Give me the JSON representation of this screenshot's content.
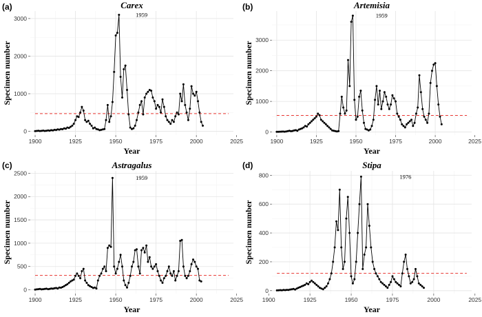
{
  "chart_data": [
    {
      "type": "line",
      "label": "(a)",
      "title": "Carex",
      "xlabel": "Year",
      "ylabel": "Specimen number",
      "xlim": [
        1897,
        2023
      ],
      "ylim": [
        -100,
        3200
      ],
      "xticks": [
        1900,
        1925,
        1950,
        1975,
        2000,
        2025
      ],
      "yticks": [
        0,
        1000,
        2000,
        3000
      ],
      "mean": 470,
      "annotation": {
        "text": "1959",
        "x": 1959,
        "y": 3100
      },
      "x_start": 1900,
      "values": [
        5,
        10,
        15,
        8,
        12,
        20,
        10,
        15,
        25,
        18,
        30,
        22,
        40,
        35,
        50,
        45,
        60,
        55,
        80,
        70,
        100,
        90,
        120,
        150,
        200,
        300,
        400,
        380,
        500,
        650,
        550,
        300,
        250,
        280,
        200,
        150,
        80,
        100,
        60,
        50,
        30,
        40,
        50,
        60,
        300,
        700,
        250,
        400,
        780,
        1580,
        2550,
        2620,
        3100,
        1450,
        900,
        1650,
        1750,
        1100,
        450,
        100,
        60,
        80,
        150,
        300,
        500,
        700,
        800,
        450,
        900,
        1000,
        1050,
        1100,
        1080,
        900,
        800,
        600,
        700,
        650,
        500,
        850,
        650,
        400,
        300,
        250,
        200,
        300,
        250,
        400,
        500,
        450,
        1000,
        800,
        1250,
        700,
        500,
        300,
        600,
        1200,
        1000,
        950,
        1050,
        800,
        500,
        250,
        150
      ]
    },
    {
      "type": "line",
      "label": "(b)",
      "title": "Artemisia",
      "xlabel": "Year",
      "ylabel": "Specimen number",
      "xlim": [
        1897,
        2023
      ],
      "ylim": [
        -100,
        3950
      ],
      "xticks": [
        1900,
        1925,
        1950,
        1975,
        2000,
        2025
      ],
      "yticks": [
        0,
        1000,
        2000,
        3000
      ],
      "mean": 540,
      "annotation": {
        "text": "1959",
        "x": 1959,
        "y": 3800
      },
      "x_start": 1900,
      "values": [
        5,
        8,
        10,
        12,
        15,
        10,
        20,
        30,
        40,
        25,
        35,
        50,
        60,
        40,
        80,
        100,
        120,
        150,
        200,
        180,
        250,
        300,
        350,
        400,
        450,
        500,
        600,
        550,
        400,
        350,
        300,
        250,
        200,
        150,
        100,
        50,
        40,
        30,
        20,
        30,
        600,
        1150,
        800,
        600,
        700,
        2350,
        1500,
        3600,
        3800,
        1050,
        400,
        500,
        1150,
        1350,
        700,
        300,
        100,
        80,
        50,
        80,
        200,
        400,
        1050,
        1500,
        900,
        1350,
        750,
        1000,
        1300,
        1150,
        900,
        750,
        900,
        1200,
        1100,
        1000,
        600,
        500,
        400,
        250,
        200,
        150,
        250,
        300,
        350,
        400,
        200,
        300,
        600,
        800,
        1850,
        1300,
        750,
        500,
        400,
        300,
        600,
        1600,
        2000,
        2200,
        2250,
        1500,
        900,
        500,
        250
      ]
    },
    {
      "type": "line",
      "label": "(c)",
      "title": "Astragalus",
      "xlabel": "Year",
      "ylabel": "Specimen number",
      "xlim": [
        1897,
        2023
      ],
      "ylim": [
        -80,
        2550
      ],
      "xticks": [
        1900,
        1925,
        1950,
        1975,
        2000,
        2025
      ],
      "yticks": [
        0,
        500,
        1000,
        1500,
        2000,
        2500
      ],
      "mean": 310,
      "annotation": {
        "text": "1959",
        "x": 1959,
        "y": 2400
      },
      "x_start": 1900,
      "values": [
        5,
        10,
        15,
        20,
        10,
        15,
        20,
        25,
        15,
        20,
        30,
        25,
        35,
        40,
        30,
        50,
        45,
        60,
        80,
        100,
        120,
        150,
        180,
        200,
        220,
        300,
        350,
        300,
        250,
        400,
        450,
        200,
        150,
        100,
        80,
        60,
        40,
        50,
        30,
        200,
        300,
        350,
        450,
        500,
        400,
        900,
        950,
        920,
        2400,
        500,
        350,
        450,
        600,
        750,
        500,
        200,
        100,
        50,
        150,
        300,
        500,
        600,
        850,
        870,
        500,
        350,
        850,
        900,
        800,
        950,
        600,
        700,
        500,
        450,
        500,
        550,
        400,
        300,
        200,
        150,
        250,
        300,
        400,
        500,
        350,
        300,
        400,
        200,
        300,
        400,
        1050,
        1070,
        500,
        300,
        250,
        300,
        400,
        550,
        650,
        600,
        500,
        450,
        200,
        180
      ]
    },
    {
      "type": "line",
      "label": "(d)",
      "title": "Stipa",
      "xlabel": "Year",
      "ylabel": "Specimen number",
      "xlim": [
        1902,
        2023
      ],
      "ylim": [
        -20,
        830
      ],
      "xticks": [
        1900,
        1925,
        1950,
        1975,
        2000,
        2025
      ],
      "yticks": [
        0,
        200,
        400,
        600,
        800
      ],
      "mean": 120,
      "annotation": {
        "text": "1976",
        "x": 1976,
        "y": 790
      },
      "x_start": 1905,
      "values": [
        2,
        3,
        4,
        3,
        5,
        4,
        6,
        5,
        8,
        10,
        12,
        8,
        15,
        20,
        25,
        30,
        35,
        40,
        50,
        45,
        60,
        70,
        60,
        50,
        40,
        30,
        20,
        15,
        10,
        20,
        30,
        50,
        80,
        120,
        200,
        300,
        480,
        420,
        700,
        300,
        150,
        200,
        500,
        650,
        400,
        100,
        50,
        80,
        200,
        400,
        600,
        790,
        150,
        250,
        300,
        600,
        450,
        300,
        200,
        150,
        120,
        100,
        80,
        60,
        50,
        40,
        30,
        20,
        40,
        60,
        100,
        80,
        60,
        50,
        40,
        30,
        120,
        200,
        250,
        150,
        100,
        50,
        60,
        80,
        150,
        100,
        50,
        40,
        30,
        20
      ]
    }
  ]
}
